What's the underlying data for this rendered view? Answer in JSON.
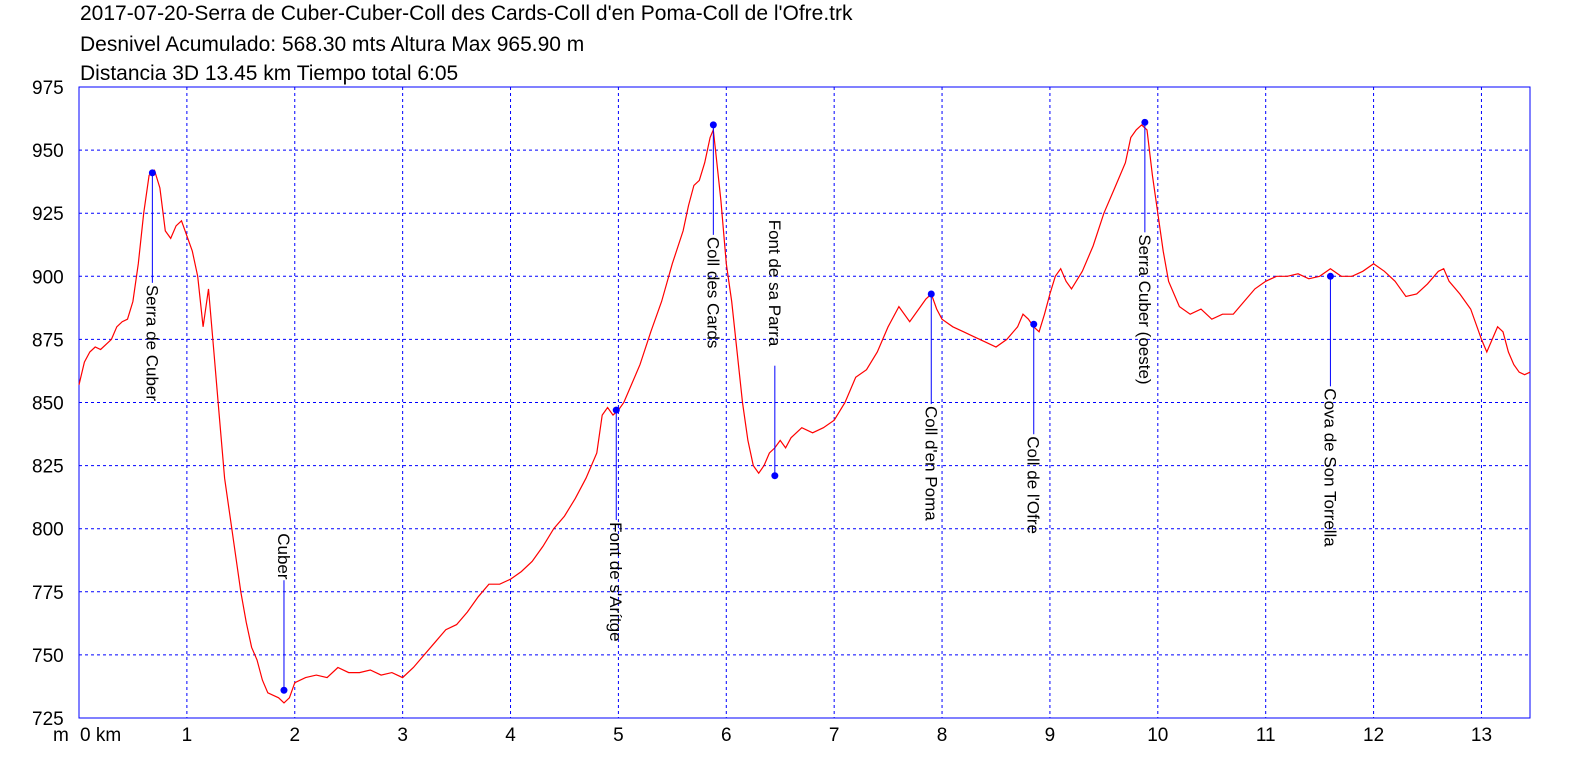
{
  "header": {
    "line1": "2017-07-20-Serra de Cuber-Cuber-Coll des Cards-Coll d'en Poma-Coll de l'Ofre.trk",
    "line2": "Desnivel Acumulado: 568.30 mts  Altura Max 965.90 m",
    "line3": "Distancia 3D 13.45 km  Tiempo total 6:05"
  },
  "chart_data": {
    "type": "line",
    "title": "2017-07-20-Serra de Cuber-Cuber-Coll des Cards-Coll d'en Poma-Coll de l'Ofre.trk",
    "xlabel": "km",
    "ylabel": "m",
    "xlim": [
      0,
      13.45
    ],
    "ylim": [
      725,
      975
    ],
    "grid": true,
    "colors": {
      "profile": "#ff0000",
      "frame": "#0000ff",
      "waypoint": "#0000ff",
      "grid": "#0000ff"
    },
    "yticks": [
      725,
      750,
      775,
      800,
      825,
      850,
      875,
      900,
      925,
      950,
      975
    ],
    "xticks": [
      0,
      1,
      2,
      3,
      4,
      5,
      6,
      7,
      8,
      9,
      10,
      11,
      12,
      13
    ],
    "x_tick_labels": [
      "0 km",
      "1",
      "2",
      "3",
      "4",
      "5",
      "6",
      "7",
      "8",
      "9",
      "10",
      "11",
      "12",
      "13"
    ],
    "y_unit_label": "m",
    "series": [
      {
        "x": [
          0,
          0.05,
          0.1,
          0.15,
          0.2,
          0.3,
          0.35,
          0.4,
          0.45,
          0.5,
          0.55,
          0.6,
          0.65,
          0.7,
          0.75,
          0.8,
          0.85,
          0.9,
          0.95,
          1.0,
          1.05,
          1.1,
          1.15,
          1.2,
          1.25,
          1.3,
          1.35,
          1.4,
          1.45,
          1.5,
          1.55,
          1.6,
          1.65,
          1.7,
          1.75,
          1.8,
          1.85,
          1.9,
          1.95,
          2.0,
          2.1,
          2.2,
          2.3,
          2.4,
          2.5,
          2.6,
          2.7,
          2.8,
          2.9,
          3.0,
          3.1,
          3.2,
          3.3,
          3.4,
          3.5,
          3.6,
          3.7,
          3.8,
          3.9,
          4.0,
          4.1,
          4.2,
          4.3,
          4.4,
          4.5,
          4.6,
          4.7,
          4.8,
          4.85,
          4.9,
          4.95,
          5.0,
          5.05,
          5.1,
          5.2,
          5.3,
          5.4,
          5.5,
          5.6,
          5.65,
          5.7,
          5.75,
          5.8,
          5.85,
          5.88,
          5.9,
          5.95,
          6.0,
          6.05,
          6.1,
          6.15,
          6.2,
          6.25,
          6.3,
          6.35,
          6.4,
          6.45,
          6.5,
          6.55,
          6.6,
          6.7,
          6.8,
          6.9,
          7.0,
          7.1,
          7.2,
          7.3,
          7.4,
          7.5,
          7.6,
          7.7,
          7.8,
          7.85,
          7.9,
          7.95,
          8.0,
          8.1,
          8.2,
          8.3,
          8.4,
          8.5,
          8.6,
          8.7,
          8.75,
          8.8,
          8.85,
          8.9,
          8.95,
          9.0,
          9.05,
          9.1,
          9.15,
          9.2,
          9.3,
          9.4,
          9.5,
          9.6,
          9.7,
          9.75,
          9.8,
          9.85,
          9.9,
          9.95,
          10.0,
          10.05,
          10.1,
          10.2,
          10.3,
          10.4,
          10.5,
          10.6,
          10.7,
          10.8,
          10.9,
          11.0,
          11.1,
          11.2,
          11.3,
          11.4,
          11.5,
          11.6,
          11.7,
          11.8,
          11.9,
          12.0,
          12.1,
          12.2,
          12.3,
          12.4,
          12.5,
          12.6,
          12.65,
          12.7,
          12.8,
          12.9,
          13.0,
          13.05,
          13.1,
          13.15,
          13.2,
          13.25,
          13.3,
          13.35,
          13.4,
          13.45
        ],
        "y": [
          857,
          866,
          870,
          872,
          871,
          875,
          880,
          882,
          883,
          890,
          905,
          925,
          940,
          942,
          935,
          918,
          915,
          920,
          922,
          916,
          910,
          900,
          880,
          895,
          870,
          845,
          820,
          805,
          790,
          775,
          763,
          753,
          748,
          740,
          735,
          734,
          733,
          731,
          733,
          739,
          741,
          742,
          741,
          745,
          743,
          743,
          744,
          742,
          743,
          741,
          745,
          750,
          755,
          760,
          762,
          767,
          773,
          778,
          778,
          780,
          783,
          787,
          793,
          800,
          805,
          812,
          820,
          830,
          845,
          848,
          845,
          847,
          850,
          855,
          865,
          878,
          890,
          905,
          918,
          928,
          936,
          938,
          945,
          955,
          958,
          950,
          930,
          905,
          890,
          870,
          850,
          835,
          825,
          822,
          825,
          830,
          832,
          835,
          832,
          836,
          840,
          838,
          840,
          843,
          850,
          860,
          863,
          870,
          880,
          888,
          882,
          888,
          891,
          893,
          887,
          883,
          880,
          878,
          876,
          874,
          872,
          875,
          880,
          885,
          883,
          880,
          878,
          885,
          893,
          900,
          903,
          898,
          895,
          902,
          912,
          925,
          935,
          945,
          955,
          958,
          960,
          958,
          940,
          925,
          910,
          898,
          888,
          885,
          887,
          883,
          885,
          885,
          890,
          895,
          898,
          900,
          900,
          901,
          899,
          900,
          903,
          900,
          900,
          902,
          905,
          902,
          898,
          892,
          893,
          897,
          902,
          903,
          898,
          893,
          887,
          875,
          870,
          875,
          880,
          878,
          870,
          865,
          862,
          861,
          862
        ]
      }
    ],
    "waypoints": [
      {
        "name": "Serra de Cuber",
        "x": 0.68,
        "y": 941
      },
      {
        "name": "Cuber",
        "x": 1.9,
        "y": 736
      },
      {
        "name": "Font de s'Arítge",
        "x": 4.98,
        "y": 847
      },
      {
        "name": "Coll des Cards",
        "x": 5.88,
        "y": 960
      },
      {
        "name": "Font de sa Parra",
        "x": 6.45,
        "y": 821
      },
      {
        "name": "Coll d'en Poma",
        "x": 7.9,
        "y": 893
      },
      {
        "name": "Coll de l'Ofre",
        "x": 8.85,
        "y": 881
      },
      {
        "name": "Serra Cuber (oeste)",
        "x": 9.88,
        "y": 961
      },
      {
        "name": "Cova de Son Torrella",
        "x": 11.6,
        "y": 900
      }
    ]
  }
}
